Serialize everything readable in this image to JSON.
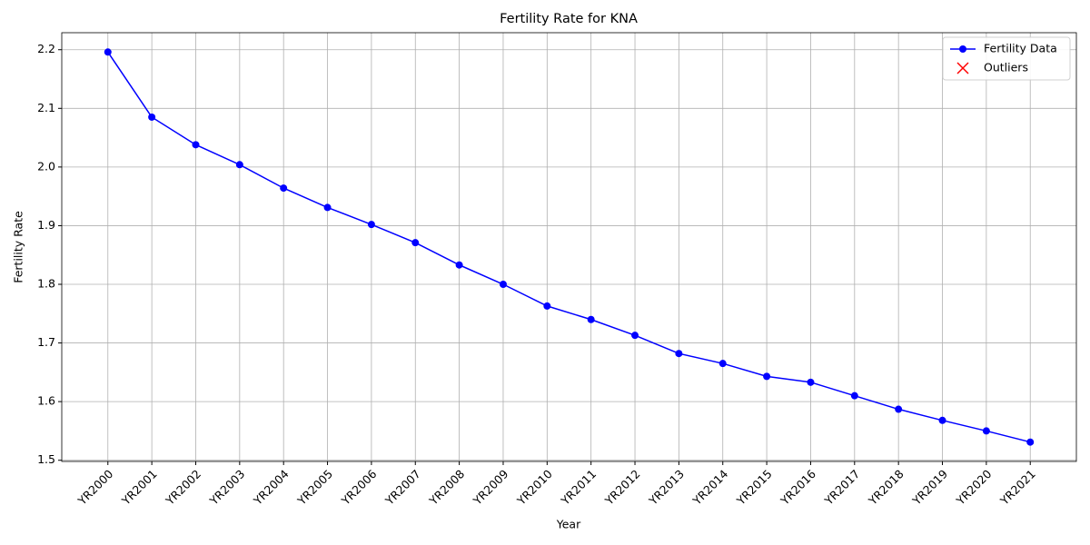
{
  "chart_data": {
    "type": "line",
    "title": "Fertility Rate for KNA",
    "x_label": "Year",
    "y_label": "Fertility Rate",
    "categories": [
      "YR2000",
      "YR2001",
      "YR2002",
      "YR2003",
      "YR2004",
      "YR2005",
      "YR2006",
      "YR2007",
      "YR2008",
      "YR2009",
      "YR2010",
      "YR2011",
      "YR2012",
      "YR2013",
      "YR2014",
      "YR2015",
      "YR2016",
      "YR2017",
      "YR2018",
      "YR2019",
      "YR2020",
      "YR2021"
    ],
    "series": [
      {
        "name": "Fertility Data",
        "color": "#0000ff",
        "marker": "circle",
        "values": [
          2.196,
          2.085,
          2.038,
          2.004,
          1.964,
          1.931,
          1.902,
          1.871,
          1.833,
          1.8,
          1.763,
          1.74,
          1.713,
          1.682,
          1.665,
          1.643,
          1.633,
          1.61,
          1.587,
          1.568,
          1.55,
          1.531
        ]
      },
      {
        "name": "Outliers",
        "color": "#ff0000",
        "marker": "x",
        "values": [
          null,
          null,
          null,
          null,
          null,
          null,
          null,
          null,
          null,
          null,
          null,
          null,
          null,
          null,
          null,
          null,
          null,
          null,
          null,
          null,
          null,
          null
        ]
      }
    ],
    "ylim": [
      1.498,
      2.229
    ],
    "yticks": [
      1.5,
      1.6,
      1.7,
      1.8,
      1.9,
      {
        "value": 2.0,
        "label": "2.0"
      },
      2.1,
      2.2
    ],
    "grid": true,
    "legend": "upper right"
  }
}
